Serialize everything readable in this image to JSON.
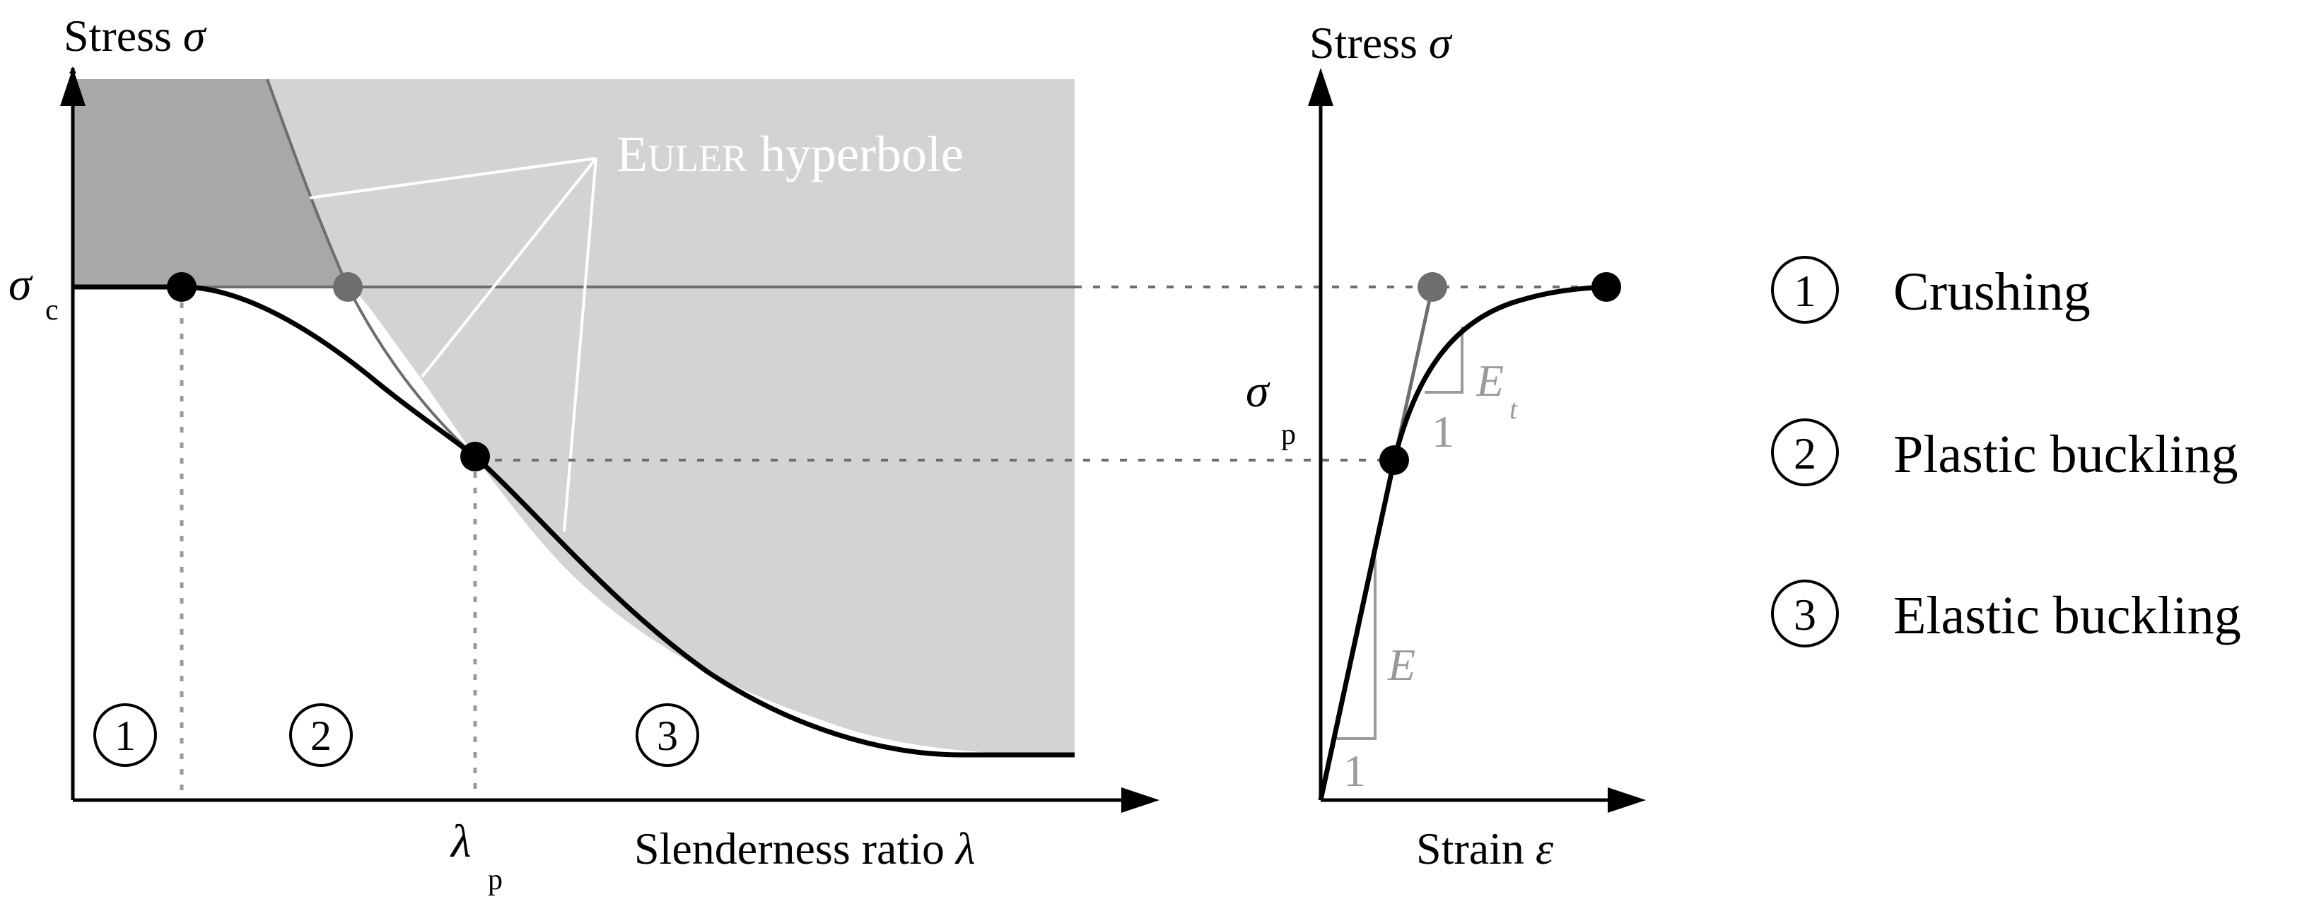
{
  "left_diagram": {
    "y_axis_label": "Stress",
    "y_axis_symbol": "σ",
    "x_axis_label": "Slenderness ratio",
    "x_axis_symbol": "λ",
    "sigma_c_symbol": "σ",
    "sigma_c_subscript": "c",
    "lambda_p_symbol": "λ",
    "lambda_p_subscript": "p",
    "euler_small_caps_first": "E",
    "euler_small_caps_rest": "ULER",
    "euler_rest": "hyperbole",
    "region_1": "1",
    "region_2": "2",
    "region_3": "3"
  },
  "right_diagram": {
    "y_axis_label": "Stress",
    "y_axis_symbol": "σ",
    "x_axis_label": "Strain",
    "x_axis_symbol": "ε",
    "sigma_p_symbol": "σ",
    "sigma_p_subscript": "p",
    "tangent_modulus_symbol": "E",
    "tangent_modulus_subscript": "t",
    "tangent_slope_run": "1",
    "elastic_modulus_symbol": "E",
    "elastic_slope_run": "1"
  },
  "legend": [
    {
      "number": "1",
      "label": "Crushing"
    },
    {
      "number": "2",
      "label": "Plastic buckling"
    },
    {
      "number": "3",
      "label": "Elastic buckling"
    }
  ],
  "colors": {
    "crushing_region": "#a8a8a8",
    "buckling_region": "#d3d3d3",
    "euler_line": "#6e6e6e",
    "curve": "#000000",
    "annotation_gray": "#9a9a9a"
  }
}
